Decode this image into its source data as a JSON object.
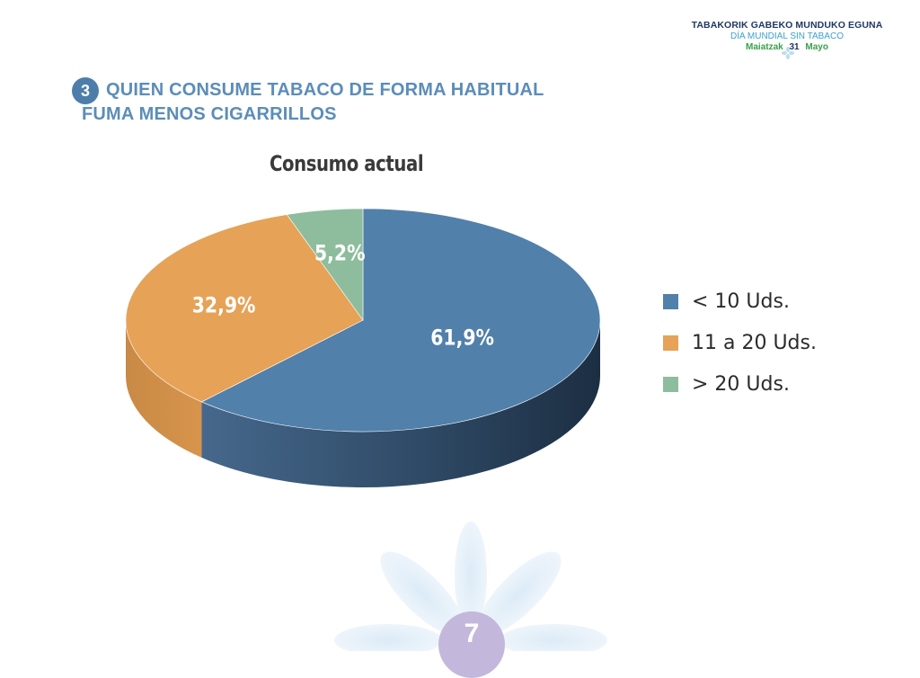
{
  "header": {
    "line1": "TABAKORIK GABEKO MUNDUKO EGUNA",
    "line2": "DÍA MUNDIAL SIN TABACO",
    "line3_left": "Maiatzak",
    "line3_num": "31",
    "line3_right": "Mayo"
  },
  "section": {
    "number": "3",
    "title_line1": "QUIEN CONSUME TABACO DE FORMA HABITUAL",
    "title_line2": "FUMA MENOS CIGARRILLOS"
  },
  "colors": {
    "blue": "#5180aa",
    "orange": "#e6a257",
    "green": "#8dbd9c",
    "title_blue": "#5b8db8"
  },
  "chart_data": {
    "type": "pie",
    "title": "Consumo actual",
    "slices": [
      {
        "label": "< 10 Uds.",
        "value": 61.9,
        "display": "61,9%",
        "color": "#5180aa"
      },
      {
        "label": "11 a 20 Uds.",
        "value": 32.9,
        "display": "32,9%",
        "color": "#e6a257"
      },
      {
        "label": "> 20 Uds.",
        "value": 5.2,
        "display": "5,2%",
        "color": "#8dbd9c"
      }
    ],
    "legend_position": "right",
    "style": "3d"
  },
  "page_number": "7"
}
